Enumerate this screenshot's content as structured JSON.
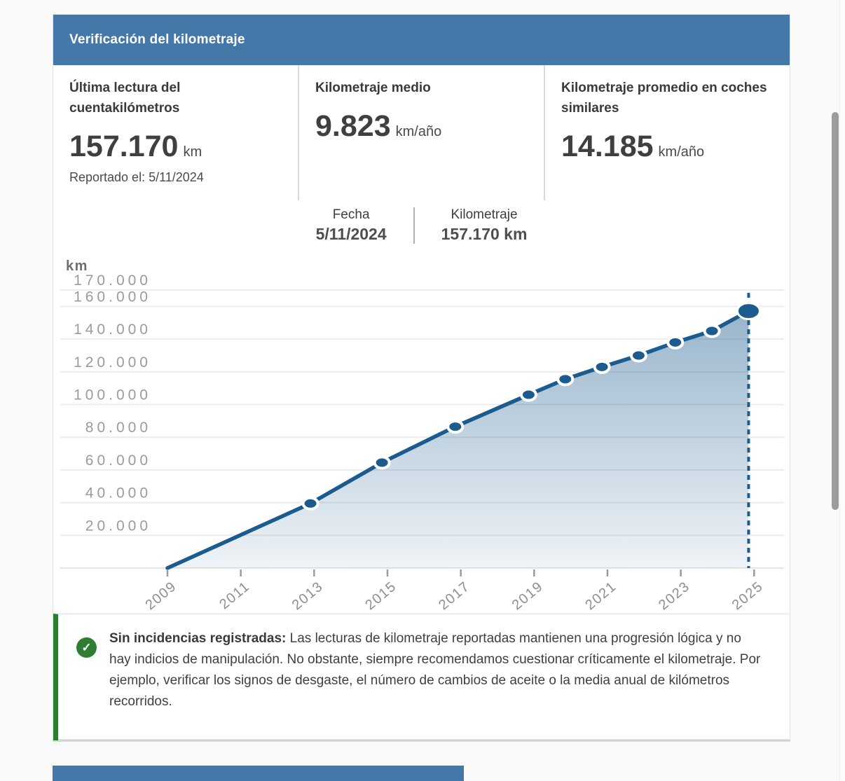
{
  "header": {
    "title": "Verificación del kilometraje",
    "bg_color": "#4478a9"
  },
  "stats": [
    {
      "label": "Última lectura del cuentakilómetros",
      "value": "157.170",
      "unit": "km",
      "note": "Reportado el: 5/11/2024"
    },
    {
      "label": "Kilometraje medio",
      "value": "9.823",
      "unit": "km/año",
      "note": ""
    },
    {
      "label": "Kilometraje promedio en coches similares",
      "value": "14.185",
      "unit": "km/año",
      "note": ""
    }
  ],
  "tooltip": {
    "date_label": "Fecha",
    "date_value": "5/11/2024",
    "km_label": "Kilometraje",
    "km_value": "157.170 km"
  },
  "chart_data": {
    "type": "area",
    "title": "",
    "ylabel": "km",
    "xlabel": "",
    "grid": true,
    "legend": "none",
    "ylim": [
      0,
      187000
    ],
    "xlim": [
      2008.4,
      2025.6
    ],
    "y_ticks": [
      {
        "value": 170000,
        "label": "170.000"
      },
      {
        "value": 160000,
        "label": "160.000"
      },
      {
        "value": 140000,
        "label": "140.000"
      },
      {
        "value": 120000,
        "label": "120.000"
      },
      {
        "value": 100000,
        "label": "100.000"
      },
      {
        "value": 80000,
        "label": "80.000"
      },
      {
        "value": 60000,
        "label": "60.000"
      },
      {
        "value": 40000,
        "label": "40.000"
      },
      {
        "value": 20000,
        "label": "20.000"
      }
    ],
    "x_ticks": [
      {
        "value": 2009,
        "label": "2009"
      },
      {
        "value": 2011,
        "label": "2011"
      },
      {
        "value": 2013,
        "label": "2013"
      },
      {
        "value": 2015,
        "label": "2015"
      },
      {
        "value": 2017,
        "label": "2017"
      },
      {
        "value": 2019,
        "label": "2019"
      },
      {
        "value": 2021,
        "label": "2021"
      },
      {
        "value": 2023,
        "label": "2023"
      },
      {
        "value": 2025,
        "label": "2025"
      }
    ],
    "points": [
      {
        "year": 2009.0,
        "km": 0
      },
      {
        "year": 2012.9,
        "km": 39500
      },
      {
        "year": 2014.85,
        "km": 64500
      },
      {
        "year": 2016.85,
        "km": 86500
      },
      {
        "year": 2018.85,
        "km": 106000
      },
      {
        "year": 2019.85,
        "km": 115500
      },
      {
        "year": 2020.85,
        "km": 123000
      },
      {
        "year": 2021.85,
        "km": 130000
      },
      {
        "year": 2022.85,
        "km": 138000
      },
      {
        "year": 2023.85,
        "km": 145000
      },
      {
        "year": 2024.85,
        "km": 157170
      }
    ],
    "highlighted_point": {
      "date": "5/11/2024",
      "km": 157170
    },
    "line_color": "#1b5b8d",
    "fill_color_top": "rgba(27,91,141,0.45)",
    "fill_color_bottom": "rgba(27,91,141,0.07)",
    "grid_color": "#ececec",
    "axis_text_color": "#9b9b9b",
    "x_text_color": "#8e8e8e",
    "ylabel_color": "#6e6e6e"
  },
  "message": {
    "icon": "check-icon",
    "icon_glyph": "✓",
    "accent_color": "#2e7d32",
    "title": "Sin incidencias registradas:",
    "body": " Las lecturas de kilometraje reportadas mantienen una progresión lógica y no hay indicios de manipulación. No obstante, siempre recomendamos cuestionar críticamente el kilometraje. Por ejemplo, verificar los signos de desgaste, el número de cambios de aceite o la media anual de kilómetros recorridos."
  }
}
